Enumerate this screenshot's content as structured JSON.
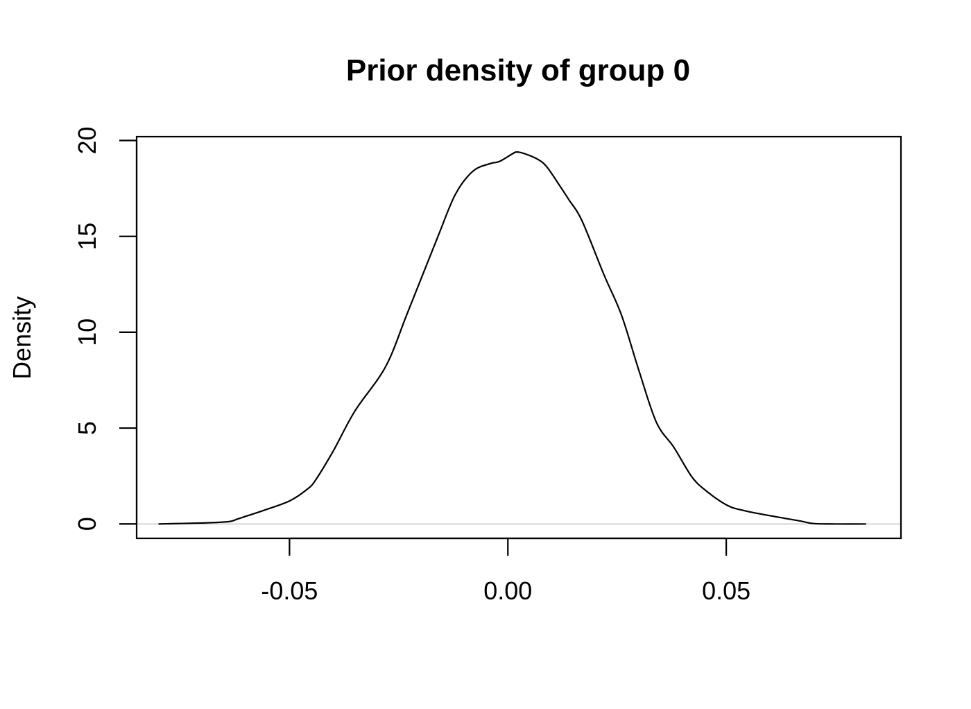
{
  "chart_data": {
    "type": "line",
    "title": "Prior density of group 0",
    "xlabel": "",
    "ylabel": "Density",
    "xlim": [
      -0.085,
      0.09
    ],
    "ylim": [
      -0.75,
      20.2
    ],
    "x_ticks": [
      {
        "value": -0.05,
        "label": "-0.05"
      },
      {
        "value": 0.0,
        "label": "0.00"
      },
      {
        "value": 0.05,
        "label": "0.05"
      }
    ],
    "y_ticks": [
      {
        "value": 0,
        "label": "0"
      },
      {
        "value": 5,
        "label": "5"
      },
      {
        "value": 10,
        "label": "10"
      },
      {
        "value": 15,
        "label": "15"
      },
      {
        "value": 20,
        "label": "20"
      }
    ],
    "baseline": 0,
    "colors": {
      "line": "#000000",
      "baseline": "#bebebe"
    },
    "series": [
      {
        "x": [
          -0.08,
          -0.07,
          -0.064,
          -0.062,
          -0.06,
          -0.056,
          -0.05,
          -0.046,
          -0.044,
          -0.04,
          -0.035,
          -0.028,
          -0.023,
          -0.016,
          -0.012,
          -0.008,
          -0.004,
          -0.002,
          0.001,
          0.002,
          0.004,
          0.007,
          0.009,
          0.012,
          0.014,
          0.017,
          0.022,
          0.026,
          0.03,
          0.034,
          0.038,
          0.042,
          0.045,
          0.05,
          0.054,
          0.062,
          0.067,
          0.07,
          0.075,
          0.082
        ],
        "y": [
          0.0,
          0.05,
          0.12,
          0.25,
          0.4,
          0.7,
          1.2,
          1.8,
          2.3,
          3.8,
          5.9,
          8.2,
          11.0,
          15.0,
          17.2,
          18.4,
          18.8,
          18.9,
          19.3,
          19.4,
          19.3,
          19.0,
          18.6,
          17.6,
          16.9,
          15.8,
          13.0,
          10.9,
          8.0,
          5.3,
          4.0,
          2.5,
          1.8,
          1.0,
          0.7,
          0.35,
          0.15,
          0.02,
          0.0,
          0.0
        ]
      }
    ]
  }
}
